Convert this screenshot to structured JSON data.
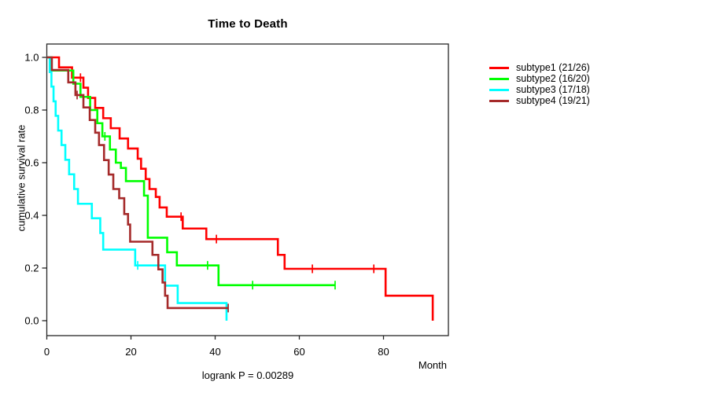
{
  "chart_data": {
    "type": "line",
    "subtype": "kaplan-meier-step",
    "title": "Time to Death",
    "xlabel": "Month",
    "ylabel": "cumulative survival rate",
    "caption": "logrank P = 0.00289",
    "xlim": [
      0,
      95.5
    ],
    "ylim": [
      0.0,
      1.0
    ],
    "x_ticks": [
      0,
      20,
      40,
      60,
      80
    ],
    "y_ticks": [
      0.0,
      0.2,
      0.4,
      0.6,
      0.8,
      1.0
    ],
    "grid": "off",
    "legend_position": "right",
    "axis_color": "#262626",
    "series": [
      {
        "name": "subtype1",
        "legend_label": "subtype1 (21/26)",
        "color": "#ff0000",
        "steps": [
          [
            0,
            1.0
          ],
          [
            2.9,
            0.962
          ],
          [
            6,
            0.923
          ],
          [
            8.7,
            0.885
          ],
          [
            9.8,
            0.846
          ],
          [
            11.5,
            0.808
          ],
          [
            13.4,
            0.769
          ],
          [
            15.2,
            0.731
          ],
          [
            17.3,
            0.692
          ],
          [
            19.3,
            0.654
          ],
          [
            21.6,
            0.615
          ],
          [
            22.4,
            0.577
          ],
          [
            23.5,
            0.538
          ],
          [
            24.4,
            0.5
          ],
          [
            25.9,
            0.47
          ],
          [
            26.8,
            0.43
          ],
          [
            28.5,
            0.395
          ],
          [
            32.3,
            0.35
          ],
          [
            37.9,
            0.31
          ],
          [
            54.9,
            0.25
          ],
          [
            56.5,
            0.197
          ],
          [
            80.5,
            0.095
          ],
          [
            91.7,
            0.0
          ]
        ],
        "end_month": 91.7,
        "censor_marks": [
          [
            8,
            0.923
          ],
          [
            31.9,
            0.395
          ],
          [
            40.3,
            0.31
          ],
          [
            63.1,
            0.197
          ],
          [
            77.7,
            0.197
          ]
        ]
      },
      {
        "name": "subtype2",
        "legend_label": "subtype2 (16/20)",
        "color": "#00ff00",
        "steps": [
          [
            0,
            1.0
          ],
          [
            1,
            0.95
          ],
          [
            6.3,
            0.9
          ],
          [
            8,
            0.85
          ],
          [
            10.3,
            0.8
          ],
          [
            12,
            0.75
          ],
          [
            13.2,
            0.7
          ],
          [
            15,
            0.65
          ],
          [
            16.4,
            0.6
          ],
          [
            17.6,
            0.58
          ],
          [
            18.8,
            0.53
          ],
          [
            23.1,
            0.475
          ],
          [
            24,
            0.315
          ],
          [
            28.6,
            0.26
          ],
          [
            30.9,
            0.21
          ],
          [
            40.8,
            0.135
          ]
        ],
        "end_month": 68.5,
        "censor_marks": [
          [
            13.8,
            0.7
          ],
          [
            38.2,
            0.21
          ],
          [
            48.9,
            0.135
          ],
          [
            68.5,
            0.135
          ]
        ]
      },
      {
        "name": "subtype3",
        "legend_label": "subtype3 (17/18)",
        "color": "#00ffff",
        "steps": [
          [
            0,
            1.0
          ],
          [
            0.7,
            0.944
          ],
          [
            1.1,
            0.889
          ],
          [
            1.6,
            0.833
          ],
          [
            2.1,
            0.778
          ],
          [
            2.7,
            0.722
          ],
          [
            3.5,
            0.667
          ],
          [
            4.4,
            0.611
          ],
          [
            5.3,
            0.556
          ],
          [
            6.5,
            0.5
          ],
          [
            7.4,
            0.444
          ],
          [
            10.7,
            0.389
          ],
          [
            12.7,
            0.333
          ],
          [
            13.4,
            0.27
          ],
          [
            21,
            0.21
          ],
          [
            28.1,
            0.133
          ],
          [
            31.1,
            0.067
          ],
          [
            42.7,
            0.0
          ]
        ],
        "end_month": 42.7,
        "censor_marks": [
          [
            21.6,
            0.21
          ]
        ]
      },
      {
        "name": "subtype4",
        "legend_label": "subtype4 (19/21)",
        "color": "#a52a2a",
        "steps": [
          [
            0,
            1.0
          ],
          [
            1.2,
            0.952
          ],
          [
            5.1,
            0.905
          ],
          [
            6.8,
            0.857
          ],
          [
            8.7,
            0.81
          ],
          [
            10.2,
            0.762
          ],
          [
            11.5,
            0.714
          ],
          [
            12.4,
            0.667
          ],
          [
            13.6,
            0.61
          ],
          [
            14.7,
            0.555
          ],
          [
            15.8,
            0.5
          ],
          [
            17.2,
            0.465
          ],
          [
            18.4,
            0.405
          ],
          [
            19.3,
            0.365
          ],
          [
            19.8,
            0.3
          ],
          [
            25.1,
            0.25
          ],
          [
            26.5,
            0.195
          ],
          [
            27.5,
            0.145
          ],
          [
            28.1,
            0.095
          ],
          [
            28.7,
            0.048
          ]
        ],
        "end_month": 43.1,
        "censor_marks": [
          [
            7.2,
            0.857
          ],
          [
            43.1,
            0.048
          ]
        ]
      }
    ]
  }
}
